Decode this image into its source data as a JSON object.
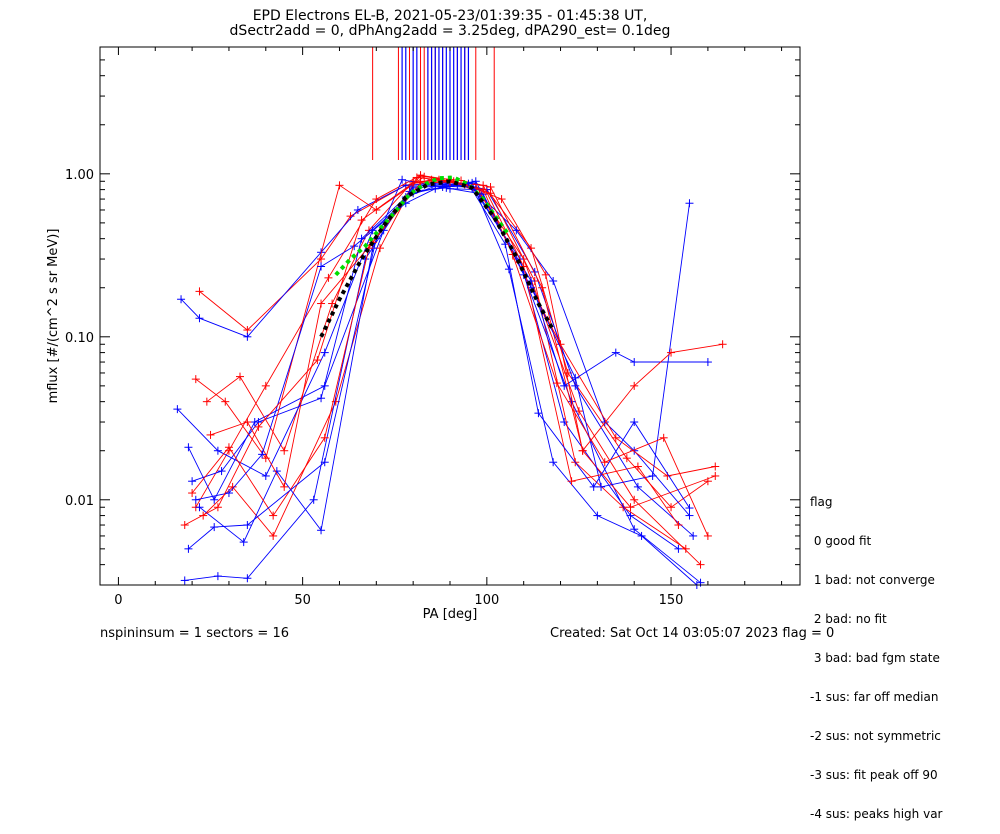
{
  "title_line1": "EPD Electrons EL-B, 2021-05-23/01:39:35 - 01:45:38 UT,",
  "title_line2": "dSectr2add = 0, dPhAng2add = 3.25deg, dPA290_est=    0.1deg",
  "footer": {
    "left": "nspininsum =  1  sectors = 16",
    "right": "Created: Sat Oct 14 03:05:07 2023   flag = 0"
  },
  "legend": {
    "title": "flag",
    "items": [
      " 0 good fit",
      " 1 bad: not converge",
      " 2 bad: no fit",
      " 3 bad: bad fgm state",
      "-1 sus: far off median",
      "-2 sus: not symmetric",
      "-3 sus: fit peak off 90",
      "-4 sus: peaks high var"
    ]
  },
  "colors": {
    "red": "#ff0000",
    "blue": "#0000ff",
    "green": "#00dd00",
    "black": "#000000"
  },
  "chart_data": {
    "type": "line",
    "xlabel": "PA [deg]",
    "ylabel": "mflux [#/(cm^2 s sr MeV)]",
    "xlim": [
      -5,
      185
    ],
    "ylim": [
      0.003,
      6.0
    ],
    "yscale": "log",
    "xticks": [
      0,
      50,
      100,
      150
    ],
    "xtick_labels": [
      "0",
      "50",
      "100",
      "150"
    ],
    "yticks": [
      0.01,
      0.1,
      1.0
    ],
    "ytick_labels": [
      "0.01",
      "0.10",
      "1.00"
    ],
    "series": [
      {
        "color": "red",
        "x": [
          22,
          35,
          55,
          63,
          78,
          85,
          92,
          100,
          112,
          122,
          138,
          150,
          160
        ],
        "y": [
          0.19,
          0.11,
          0.3,
          0.55,
          0.85,
          0.92,
          0.88,
          0.8,
          0.35,
          0.06,
          0.018,
          0.009,
          0.013
        ]
      },
      {
        "color": "blue",
        "x": [
          17,
          22,
          35,
          55,
          65,
          78,
          88,
          96,
          108,
          118,
          132,
          140,
          155
        ],
        "y": [
          0.17,
          0.13,
          0.1,
          0.33,
          0.6,
          0.85,
          0.88,
          0.82,
          0.45,
          0.22,
          0.03,
          0.02,
          0.008
        ]
      },
      {
        "color": "red",
        "x": [
          21,
          30,
          40,
          57,
          70,
          82,
          90,
          98,
          110,
          125,
          140,
          158
        ],
        "y": [
          0.009,
          0.02,
          0.05,
          0.23,
          0.7,
          0.98,
          0.92,
          0.76,
          0.3,
          0.035,
          0.01,
          0.004
        ]
      },
      {
        "color": "blue",
        "x": [
          19,
          26,
          37,
          56,
          72,
          80,
          92,
          100,
          113,
          124,
          141,
          156
        ],
        "y": [
          0.021,
          0.01,
          0.03,
          0.05,
          0.45,
          0.82,
          0.86,
          0.8,
          0.25,
          0.05,
          0.012,
          0.006
        ]
      },
      {
        "color": "red",
        "x": [
          24,
          33,
          45,
          58,
          68,
          80,
          88,
          97,
          108,
          120,
          135,
          149,
          162
        ],
        "y": [
          0.04,
          0.057,
          0.02,
          0.16,
          0.45,
          0.9,
          0.9,
          0.86,
          0.3,
          0.09,
          0.024,
          0.014,
          0.016
        ]
      },
      {
        "color": "blue",
        "x": [
          20,
          28,
          38,
          55,
          66,
          78,
          86,
          96,
          109,
          121,
          139,
          152
        ],
        "y": [
          0.013,
          0.015,
          0.03,
          0.042,
          0.4,
          0.72,
          0.84,
          0.83,
          0.3,
          0.03,
          0.008,
          0.005
        ]
      },
      {
        "color": "red",
        "x": [
          23,
          31,
          42,
          59,
          71,
          81,
          91,
          101,
          113,
          124,
          137,
          154
        ],
        "y": [
          0.008,
          0.012,
          0.006,
          0.04,
          0.35,
          0.95,
          0.9,
          0.76,
          0.22,
          0.017,
          0.009,
          0.005
        ]
      },
      {
        "color": "blue",
        "x": [
          18,
          27,
          35,
          53,
          67,
          79,
          89,
          99,
          110,
          123,
          140,
          158
        ],
        "y": [
          0.0032,
          0.0034,
          0.0033,
          0.01,
          0.3,
          0.78,
          0.82,
          0.75,
          0.24,
          0.04,
          0.0066,
          0.0031
        ]
      },
      {
        "color": "red",
        "x": [
          21,
          29,
          40,
          60,
          70,
          83,
          93,
          101,
          115,
          126,
          139,
          162
        ],
        "y": [
          0.055,
          0.04,
          0.018,
          0.85,
          0.6,
          0.96,
          0.91,
          0.83,
          0.2,
          0.02,
          0.009,
          0.014
        ]
      },
      {
        "color": "blue",
        "x": [
          22,
          34,
          43,
          55,
          69,
          77,
          90,
          97,
          112,
          121,
          135,
          140,
          160
        ],
        "y": [
          0.009,
          0.0055,
          0.015,
          0.0065,
          0.35,
          0.92,
          0.81,
          0.8,
          0.22,
          0.05,
          0.08,
          0.07,
          0.07
        ]
      },
      {
        "color": "blue",
        "x": [
          16,
          27,
          40,
          56,
          69,
          80,
          88,
          97,
          112,
          124,
          131,
          145,
          155
        ],
        "y": [
          0.036,
          0.02,
          0.014,
          0.08,
          0.45,
          0.76,
          0.83,
          0.9,
          0.2,
          0.056,
          0.012,
          0.014,
          0.66
        ]
      },
      {
        "color": "red",
        "x": [
          20,
          30,
          42,
          56,
          68,
          82,
          94,
          104,
          116,
          126,
          140,
          150,
          164
        ],
        "y": [
          0.011,
          0.021,
          0.008,
          0.024,
          0.35,
          0.98,
          0.86,
          0.7,
          0.24,
          0.02,
          0.05,
          0.08,
          0.09
        ]
      },
      {
        "color": "blue",
        "x": [
          19,
          26,
          35,
          56,
          70,
          80,
          88,
          96,
          106,
          118,
          130,
          142,
          157
        ],
        "y": [
          0.005,
          0.0068,
          0.007,
          0.017,
          0.4,
          0.84,
          0.86,
          0.88,
          0.26,
          0.017,
          0.008,
          0.006,
          0.003
        ]
      },
      {
        "color": "red",
        "x": [
          25,
          35,
          45,
          55,
          69,
          82,
          90,
          99,
          110,
          123,
          141,
          152
        ],
        "y": [
          0.025,
          0.03,
          0.012,
          0.16,
          0.38,
          0.88,
          0.89,
          0.85,
          0.27,
          0.013,
          0.016,
          0.007
        ]
      },
      {
        "color": "blue",
        "x": [
          21,
          30,
          39,
          55,
          64,
          78,
          86,
          95,
          105,
          114,
          129,
          140,
          155
        ],
        "y": [
          0.01,
          0.011,
          0.019,
          0.27,
          0.36,
          0.66,
          0.81,
          0.87,
          0.37,
          0.034,
          0.012,
          0.03,
          0.0089
        ]
      },
      {
        "color": "red",
        "x": [
          18,
          27,
          38,
          54,
          66,
          80,
          87,
          99,
          107,
          119,
          132,
          148,
          160
        ],
        "y": [
          0.007,
          0.009,
          0.028,
          0.072,
          0.52,
          0.88,
          0.92,
          0.8,
          0.32,
          0.052,
          0.017,
          0.024,
          0.006
        ]
      }
    ],
    "fit_curves": [
      {
        "color": "green",
        "x": [
          59,
          63,
          67,
          71,
          75,
          79,
          83,
          87,
          91,
          95,
          99,
          103,
          106
        ],
        "y": [
          0.24,
          0.3,
          0.36,
          0.46,
          0.58,
          0.75,
          0.86,
          0.94,
          0.95,
          0.86,
          0.7,
          0.52,
          0.42
        ]
      },
      {
        "color": "black",
        "x": [
          55,
          60,
          66,
          72,
          78,
          84,
          90,
          96,
          102,
          108,
          114,
          118
        ],
        "y": [
          0.1,
          0.17,
          0.3,
          0.48,
          0.72,
          0.86,
          0.9,
          0.82,
          0.54,
          0.31,
          0.16,
          0.11
        ]
      }
    ],
    "top_lines": {
      "red": [
        69,
        76,
        79,
        82,
        83,
        84,
        85,
        86,
        88,
        90,
        92,
        94,
        97,
        102
      ],
      "blue": [
        77,
        78,
        80,
        81,
        84,
        85,
        86,
        87,
        88,
        89,
        90,
        91,
        92,
        93,
        94,
        95
      ]
    }
  }
}
